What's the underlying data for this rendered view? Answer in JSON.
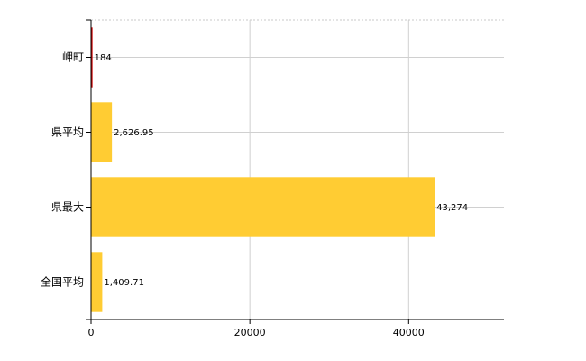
{
  "chart_data": {
    "type": "bar",
    "orientation": "horizontal",
    "categories": [
      "岬町",
      "県平均",
      "県最大",
      "全国平均"
    ],
    "values": [
      184,
      2626.95,
      43274,
      1409.71
    ],
    "data_labels": [
      "184",
      "2,626.95",
      "43,274",
      "1,409.71"
    ],
    "colors": [
      "#cc0000",
      "#ffcc33",
      "#ffcc33",
      "#ffcc33"
    ],
    "xlim": [
      0,
      52000
    ],
    "xticks": [
      0,
      20000,
      40000
    ],
    "xtick_labels": [
      "0",
      "20000",
      "40000"
    ],
    "grid": true,
    "title": "",
    "xlabel": "",
    "ylabel": ""
  }
}
